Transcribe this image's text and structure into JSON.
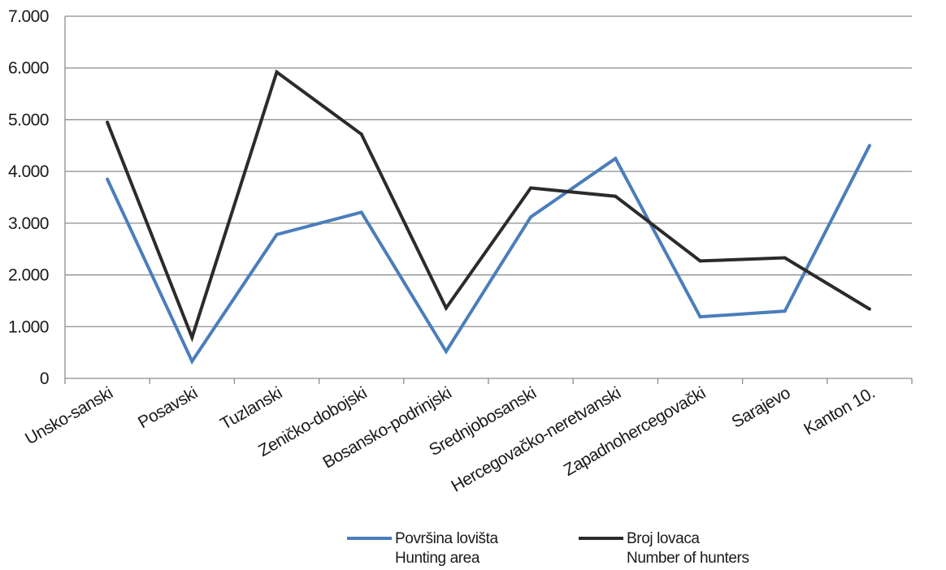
{
  "chart_data": {
    "type": "line",
    "categories": [
      "Unsko-sanski",
      "Posavski",
      "Tuzlanski",
      "Zeničko-dobojski",
      "Bosansko-podrinjski",
      "Srednjobosanski",
      "Hercegovačko-neretvanski",
      "Zapadnohercegovački",
      "Sarajevo",
      "Kanton 10."
    ],
    "y_ticks": [
      "0",
      "1.000",
      "2.000",
      "3.000",
      "4.000",
      "5.000",
      "6.000",
      "7.000"
    ],
    "ylim": [
      0,
      7000
    ],
    "grid": true,
    "legend_position": "bottom",
    "series": [
      {
        "name": "Površina lovišta",
        "name_line2": "Hunting area",
        "color": "#4a7ebb",
        "values": [
          3850,
          330,
          2780,
          3210,
          520,
          3120,
          4250,
          1190,
          1300,
          4500
        ]
      },
      {
        "name": "Broj lovaca",
        "name_line2": "Number of hunters",
        "color": "#2b2b2b",
        "values": [
          4950,
          790,
          5920,
          4720,
          1360,
          3680,
          3520,
          2270,
          2330,
          1340
        ]
      }
    ]
  }
}
